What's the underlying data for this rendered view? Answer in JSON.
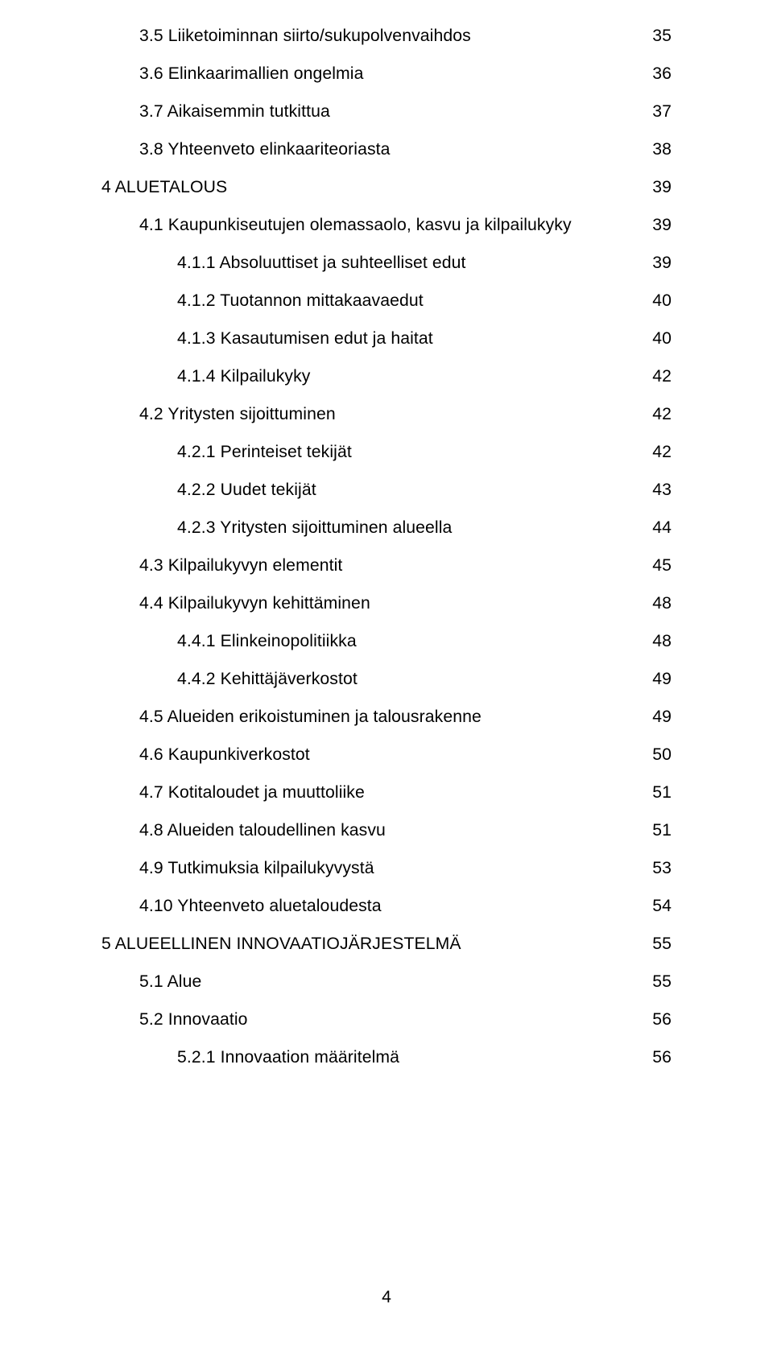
{
  "page_number": "4",
  "font": {
    "family": "Arial",
    "body_size_pt": 16,
    "color": "#000000",
    "background": "#ffffff"
  },
  "toc": [
    {
      "indent": 1,
      "label": "3.5 Liiketoiminnan siirto/sukupolvenvaihdos",
      "page": "35"
    },
    {
      "indent": 1,
      "label": "3.6 Elinkaarimallien ongelmia",
      "page": "36"
    },
    {
      "indent": 1,
      "label": "3.7 Aikaisemmin tutkittua",
      "page": "37"
    },
    {
      "indent": 1,
      "label": "3.8 Yhteenveto elinkaariteoriasta",
      "page": "38"
    },
    {
      "indent": 0,
      "label": "4 ALUETALOUS",
      "page": "39"
    },
    {
      "indent": 1,
      "label": "4.1 Kaupunkiseutujen olemassaolo, kasvu ja kilpailukyky",
      "page": "39"
    },
    {
      "indent": 2,
      "label": "4.1.1 Absoluuttiset ja suhteelliset edut",
      "page": "39"
    },
    {
      "indent": 2,
      "label": "4.1.2 Tuotannon mittakaavaedut",
      "page": "40"
    },
    {
      "indent": 2,
      "label": "4.1.3 Kasautumisen edut ja haitat",
      "page": "40"
    },
    {
      "indent": 2,
      "label": "4.1.4 Kilpailukyky",
      "page": "42"
    },
    {
      "indent": 1,
      "label": "4.2 Yritysten sijoittuminen",
      "page": "42"
    },
    {
      "indent": 2,
      "label": "4.2.1 Perinteiset tekijät",
      "page": "42"
    },
    {
      "indent": 2,
      "label": "4.2.2 Uudet tekijät",
      "page": "43"
    },
    {
      "indent": 2,
      "label": "4.2.3 Yritysten sijoittuminen alueella",
      "page": "44"
    },
    {
      "indent": 1,
      "label": "4.3 Kilpailukyvyn elementit",
      "page": "45"
    },
    {
      "indent": 1,
      "label": "4.4 Kilpailukyvyn kehittäminen",
      "page": "48"
    },
    {
      "indent": 2,
      "label": "4.4.1 Elinkeinopolitiikka",
      "page": "48"
    },
    {
      "indent": 2,
      "label": "4.4.2 Kehittäjäverkostot",
      "page": "49"
    },
    {
      "indent": 1,
      "label": "4.5 Alueiden erikoistuminen ja talousrakenne",
      "page": "49"
    },
    {
      "indent": 1,
      "label": "4.6 Kaupunkiverkostot",
      "page": "50"
    },
    {
      "indent": 1,
      "label": "4.7 Kotitaloudet ja muuttoliike",
      "page": "51"
    },
    {
      "indent": 1,
      "label": "4.8 Alueiden taloudellinen kasvu",
      "page": "51"
    },
    {
      "indent": 1,
      "label": "4.9 Tutkimuksia kilpailukyvystä",
      "page": "53"
    },
    {
      "indent": 1,
      "label": "4.10 Yhteenveto aluetaloudesta",
      "page": "54"
    },
    {
      "indent": 0,
      "label": "5 ALUEELLINEN INNOVAATIOJÄRJESTELMÄ",
      "page": "55"
    },
    {
      "indent": 1,
      "label": "5.1 Alue",
      "page": "55"
    },
    {
      "indent": 1,
      "label": "5.2 Innovaatio",
      "page": "56"
    },
    {
      "indent": 2,
      "label": "5.2.1 Innovaation määritelmä",
      "page": "56"
    }
  ]
}
